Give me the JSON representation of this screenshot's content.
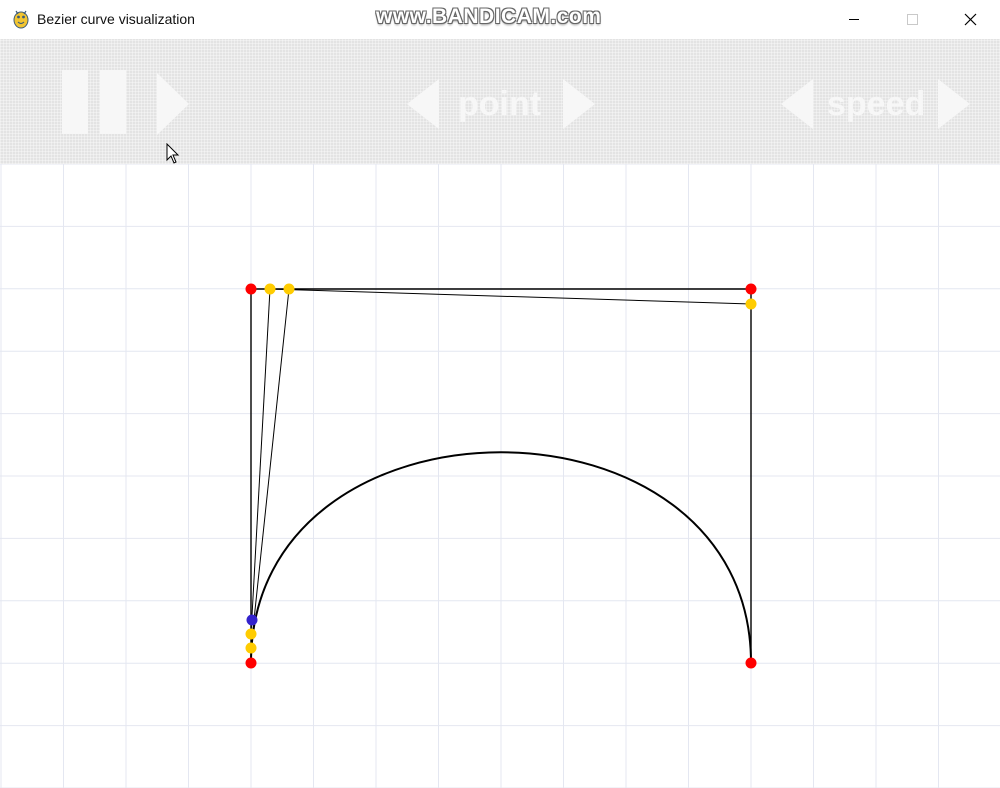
{
  "window": {
    "title": "Bezier curve visualization",
    "watermark": "www.BANDICAM.com",
    "controls": [
      "minimize",
      "maximize",
      "close"
    ]
  },
  "toolbar": {
    "play_controls": {
      "pause_icon": "pause-icon",
      "play_icon": "play-icon"
    },
    "point": {
      "label": "point",
      "prev_icon": "arrow-left-icon",
      "next_icon": "arrow-right-icon"
    },
    "speed": {
      "label": "speed",
      "prev_icon": "arrow-left-icon",
      "next_icon": "arrow-right-icon"
    }
  },
  "colors": {
    "toolbar_bg": "#e3e3e3",
    "toolbar_glyph": "#f7f7f7",
    "grid_line": "#e4e7f1",
    "line": "#000000",
    "control_point": "#ff0000",
    "intermediate_point": "#ffcc00",
    "curve_point": "#3322cc"
  }
}
